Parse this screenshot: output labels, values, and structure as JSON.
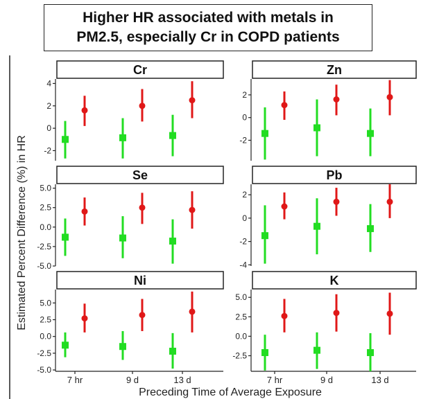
{
  "title_lines": [
    "Higher HR associated with metals in",
    "PM2.5, especially Cr in COPD patients"
  ],
  "colors": {
    "group_a": "#22dd22",
    "group_b": "#e01818",
    "strip_fill": "#ffffff",
    "frame": "#222222"
  },
  "chart_data": {
    "type": "scatter",
    "subtype": "point-range (estimate with confidence interval)",
    "xlabel": "Preceding Time of Average Exposure",
    "ylabel": "Estimated Percent Difference (%) in HR",
    "categories": [
      "7 hr",
      "9 d",
      "13 d"
    ],
    "grid": false,
    "legend": "none",
    "facets": [
      {
        "name": "Cr",
        "ylim": [
          -2.9,
          4.4
        ],
        "yticks": [
          -2,
          0,
          2,
          4
        ],
        "ytick_labels": [
          "-2",
          "0",
          "2",
          "4"
        ],
        "series": [
          {
            "color": "green",
            "marker": "square",
            "est": [
              -1.0,
              -0.85,
              -0.65
            ],
            "lo": [
              -2.7,
              -2.7,
              -2.5
            ],
            "hi": [
              0.65,
              0.9,
              1.2
            ]
          },
          {
            "color": "red",
            "marker": "circle",
            "est": [
              1.6,
              2.0,
              2.5
            ],
            "lo": [
              0.2,
              0.6,
              0.9
            ],
            "hi": [
              2.9,
              3.5,
              4.2
            ]
          }
        ]
      },
      {
        "name": "Zn",
        "ylim": [
          -3.8,
          3.4
        ],
        "yticks": [
          -2,
          0,
          2
        ],
        "ytick_labels": [
          "-2",
          "0",
          "2"
        ],
        "series": [
          {
            "color": "green",
            "marker": "square",
            "est": [
              -1.4,
              -0.9,
              -1.4
            ],
            "lo": [
              -3.7,
              -3.4,
              -3.4
            ],
            "hi": [
              0.9,
              1.6,
              0.8
            ]
          },
          {
            "color": "red",
            "marker": "circle",
            "est": [
              1.1,
              1.6,
              1.8
            ],
            "lo": [
              -0.2,
              0.2,
              0.2
            ],
            "hi": [
              2.3,
              2.9,
              3.3
            ]
          }
        ]
      },
      {
        "name": "Se",
        "ylim": [
          -5.0,
          5.5
        ],
        "yticks": [
          -5.0,
          -2.5,
          0.0,
          2.5,
          5.0
        ],
        "ytick_labels": [
          "-5.0",
          "-2.5",
          "0.0",
          "2.5",
          "5.0"
        ],
        "series": [
          {
            "color": "green",
            "marker": "square",
            "est": [
              -1.3,
              -1.4,
              -1.8
            ],
            "lo": [
              -3.7,
              -4.0,
              -4.7
            ],
            "hi": [
              1.1,
              1.4,
              1.0
            ]
          },
          {
            "color": "red",
            "marker": "circle",
            "est": [
              2.0,
              2.5,
              2.2
            ],
            "lo": [
              0.2,
              0.4,
              -0.2
            ],
            "hi": [
              3.8,
              4.4,
              4.6
            ]
          }
        ]
      },
      {
        "name": "Pb",
        "ylim": [
          -4.1,
          2.9
        ],
        "yticks": [
          -4,
          -2,
          0,
          2
        ],
        "ytick_labels": [
          "-4",
          "-2",
          "0",
          "2"
        ],
        "series": [
          {
            "color": "green",
            "marker": "square",
            "est": [
              -1.5,
              -0.7,
              -0.9
            ],
            "lo": [
              -3.9,
              -3.1,
              -2.9
            ],
            "hi": [
              1.1,
              1.7,
              1.2
            ]
          },
          {
            "color": "red",
            "marker": "circle",
            "est": [
              1.0,
              1.4,
              1.4
            ],
            "lo": [
              -0.1,
              0.2,
              0.0
            ],
            "hi": [
              2.2,
              2.6,
              2.9
            ]
          }
        ]
      },
      {
        "name": "Ni",
        "ylim": [
          -5.2,
          7.0
        ],
        "yticks": [
          -5.0,
          -2.5,
          0.0,
          2.5,
          5.0
        ],
        "ytick_labels": [
          "-5.0",
          "-2.5",
          "0.0",
          "2.5",
          "5.0"
        ],
        "series": [
          {
            "color": "green",
            "marker": "square",
            "est": [
              -1.3,
              -1.5,
              -2.2
            ],
            "lo": [
              -3.1,
              -3.5,
              -4.8
            ],
            "hi": [
              0.6,
              0.8,
              0.5
            ]
          },
          {
            "color": "red",
            "marker": "circle",
            "est": [
              2.7,
              3.2,
              3.7
            ],
            "lo": [
              0.6,
              0.8,
              0.6
            ],
            "hi": [
              4.9,
              5.6,
              6.7
            ]
          }
        ]
      },
      {
        "name": "K",
        "ylim": [
          -4.5,
          6.0
        ],
        "yticks": [
          -2.5,
          0.0,
          2.5,
          5.0
        ],
        "ytick_labels": [
          "-2.5",
          "0.0",
          "2.5",
          "5.0"
        ],
        "series": [
          {
            "color": "green",
            "marker": "square",
            "est": [
              -2.1,
              -1.8,
              -2.1
            ],
            "lo": [
              -4.4,
              -4.2,
              -4.5
            ],
            "hi": [
              0.2,
              0.5,
              0.4
            ]
          },
          {
            "color": "red",
            "marker": "circle",
            "est": [
              2.6,
              3.0,
              2.9
            ],
            "lo": [
              0.5,
              0.6,
              0.2
            ],
            "hi": [
              4.8,
              5.4,
              5.6
            ]
          }
        ]
      }
    ]
  }
}
